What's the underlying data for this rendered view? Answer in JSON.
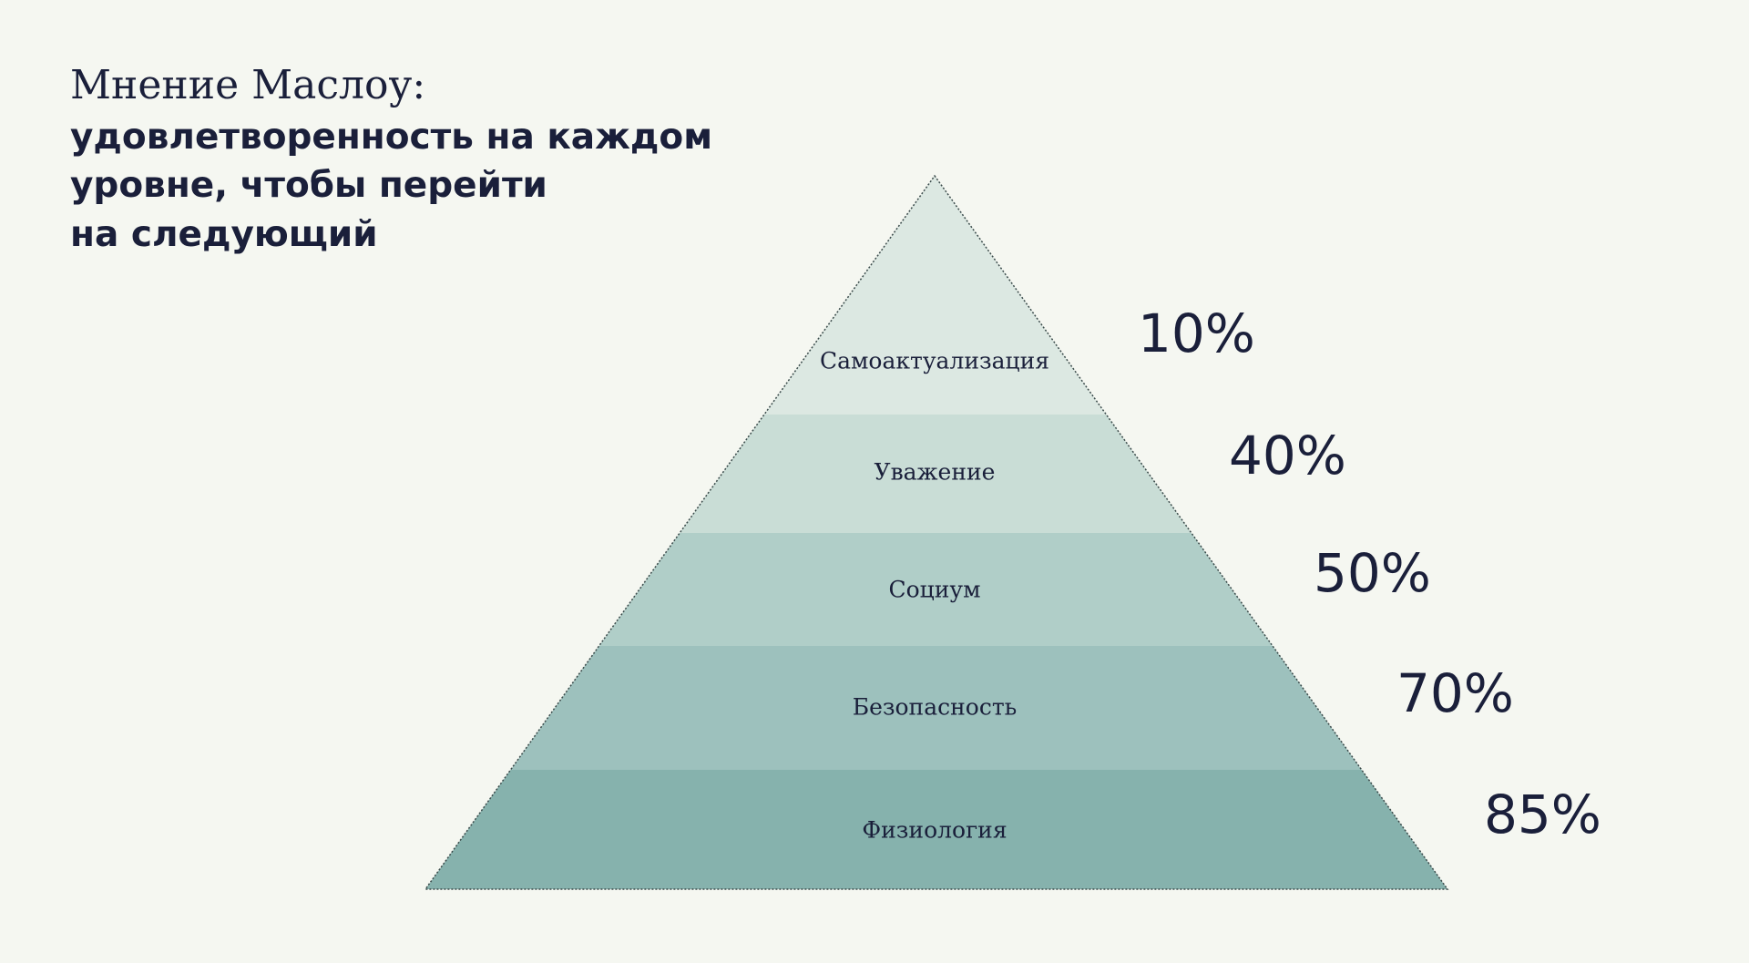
{
  "header": {
    "title_light": "Мнение Маслоу:",
    "title_bold": [
      "удовлетворенность на каждом",
      "уровне, чтобы перейти",
      "на следующий"
    ]
  },
  "pyramid": {
    "levels": [
      {
        "label": "Самоактуализация",
        "share": "10%",
        "color": "#dce8e2"
      },
      {
        "label": "Уважение",
        "share": "40%",
        "color": "#c9ddd6"
      },
      {
        "label": "Социум",
        "share": "50%",
        "color": "#b0cec8"
      },
      {
        "label": "Безопасность",
        "share": "70%",
        "color": "#9dc1bd"
      },
      {
        "label": "Физиология",
        "share": "85%",
        "color": "#86b2ad"
      }
    ]
  }
}
